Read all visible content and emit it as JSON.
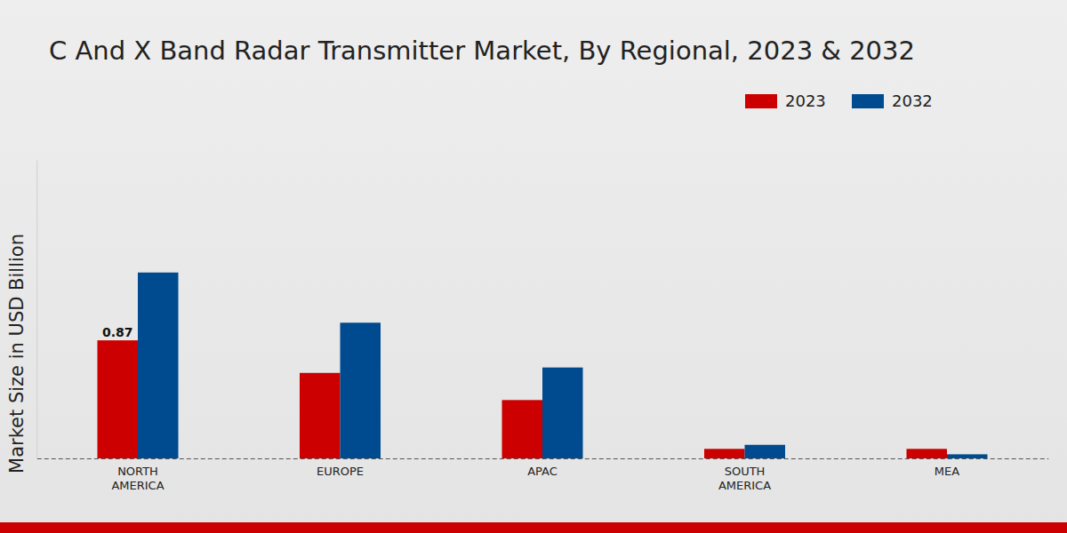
{
  "chart_data": {
    "type": "bar",
    "title": "C And X Band Radar Transmitter Market, By Regional, 2023 & 2032",
    "y_label": "Market Size in USD Billion",
    "categories": [
      "NORTH AMERICA",
      "EUROPE",
      "APAC",
      "SOUTH AMERICA",
      "MEA"
    ],
    "series": [
      {
        "name": "2023",
        "color": "#cc0000",
        "values": [
          0.87,
          0.63,
          0.43,
          0.07,
          0.07
        ]
      },
      {
        "name": "2032",
        "color": "#004a8f",
        "values": [
          1.37,
          1.0,
          0.67,
          0.1,
          0.03
        ]
      }
    ],
    "annotations": [
      {
        "text": "0.87",
        "series": "2023",
        "category": "NORTH AMERICA"
      }
    ],
    "ylim": [
      0,
      2.2
    ],
    "yticks": [],
    "grid": false,
    "legend": "upper right",
    "tick_labels": "x"
  }
}
